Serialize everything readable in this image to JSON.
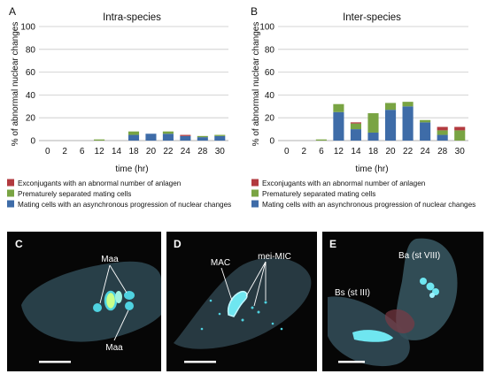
{
  "panels": {
    "A": "A",
    "B": "B",
    "C": "C",
    "D": "D",
    "E": "E"
  },
  "colors": {
    "red": "#b23a3f",
    "green": "#79a443",
    "blue": "#3e6ca8",
    "grid": "#c8c8c8",
    "axis": "#999999",
    "micro_bg": "#060606",
    "cell": "#3a5a6a",
    "nucleus": "#4fd2e0",
    "nucleus_bright": "#d8ff9a",
    "scale_bar": "#ffffff"
  },
  "chart_data": [
    {
      "type": "bar",
      "stacked": true,
      "title": "Intra-species",
      "xlabel": "time (hr)",
      "ylabel": "% of abnormal nuclear changes",
      "ylim": [
        0,
        100
      ],
      "yticks": [
        0,
        20,
        40,
        60,
        80,
        100
      ],
      "grid": true,
      "legend_position": "bottom",
      "categories": [
        "0",
        "2",
        "6",
        "12",
        "14",
        "18",
        "20",
        "22",
        "24",
        "28",
        "30"
      ],
      "series": [
        {
          "name": "Mating cells with an asynchronous progression of nuclear changes",
          "color": "blue",
          "values": [
            0,
            0,
            0,
            0,
            0,
            5,
            6,
            6,
            4,
            3,
            4
          ]
        },
        {
          "name": "Prematurely separated mating cells",
          "color": "green",
          "values": [
            0,
            0,
            0,
            1,
            0,
            3,
            0,
            2,
            0,
            1,
            1
          ]
        },
        {
          "name": "Exconjugants with an abnormal number of anlagen",
          "color": "red",
          "values": [
            0,
            0,
            0,
            0,
            0,
            0,
            0,
            0,
            1,
            0,
            0
          ]
        }
      ]
    },
    {
      "type": "bar",
      "stacked": true,
      "title": "Inter-species",
      "xlabel": "time (hr)",
      "ylabel": "% of abnormal nuclear changes",
      "ylim": [
        0,
        100
      ],
      "yticks": [
        0,
        20,
        40,
        60,
        80,
        100
      ],
      "grid": true,
      "legend_position": "bottom",
      "categories": [
        "0",
        "2",
        "6",
        "12",
        "14",
        "18",
        "20",
        "22",
        "24",
        "28",
        "30"
      ],
      "series": [
        {
          "name": "Mating cells with an asynchronous progression of nuclear changes",
          "color": "blue",
          "values": [
            0,
            0,
            0,
            25,
            10,
            7,
            27,
            30,
            16,
            5,
            0
          ]
        },
        {
          "name": "Prematurely separated mating cells",
          "color": "green",
          "values": [
            0,
            0,
            1,
            7,
            5,
            17,
            6,
            4,
            2,
            4,
            9
          ]
        },
        {
          "name": "Exconjugants with an abnormal number of anlagen",
          "color": "red",
          "values": [
            0,
            0,
            0,
            0,
            1,
            0,
            0,
            0,
            0,
            3,
            3
          ]
        }
      ]
    }
  ],
  "legend_items": [
    {
      "label": "Exconjugants with an abnormal number of anlagen",
      "color": "red"
    },
    {
      "label": "Prematurely separated mating cells",
      "color": "green"
    },
    {
      "label": "Mating cells with an asynchronous progression of nuclear changes",
      "color": "blue"
    }
  ],
  "micrographs": {
    "C": {
      "labels": [
        "Maa",
        "Maa"
      ]
    },
    "D": {
      "labels": [
        "MAC",
        "mei-MIC"
      ]
    },
    "E": {
      "labels": [
        "Ba (st VIII)",
        "Bs (st III)"
      ]
    }
  }
}
